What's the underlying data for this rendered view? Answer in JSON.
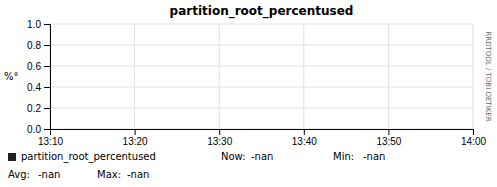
{
  "chart_data": {
    "type": "line",
    "title": "partition_root_percentused",
    "ylabel": "%°",
    "categories": [
      "13:10",
      "13:20",
      "13:30",
      "13:40",
      "13:50",
      "14:00"
    ],
    "series": [
      {
        "name": "partition_root_percentused",
        "color": "#222222",
        "values": [
          null,
          null,
          null,
          null,
          null,
          null
        ]
      }
    ],
    "ylim": [
      0.0,
      1.0
    ],
    "yticks": [
      {
        "value": 0.0,
        "label": "0.0"
      },
      0.2,
      0.4,
      0.6,
      0.8,
      {
        "value": 1.0,
        "label": "1.0"
      }
    ],
    "grid": true,
    "annotations": [
      "Now:",
      "-nan",
      "Min:",
      "-nan",
      "Avg:",
      "-nan",
      "Max:",
      "-nan",
      "RRDTOOL / TOBI OETIKER"
    ]
  }
}
